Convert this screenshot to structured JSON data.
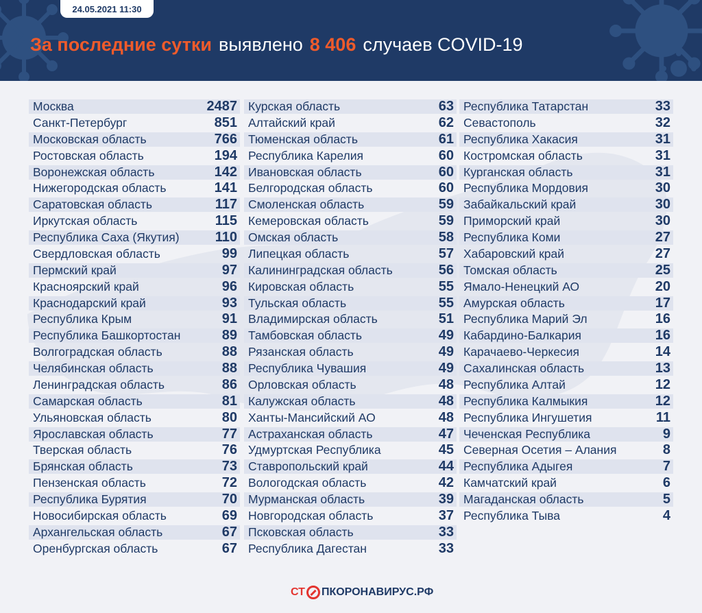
{
  "header": {
    "date": "24.05.2021 11:30",
    "headline_accent": "За последние сутки",
    "headline_mid": "выявлено",
    "headline_count": "8 406",
    "headline_tail": "случаев COVID-19"
  },
  "columns": [
    [
      {
        "region": "Москва",
        "count": "2487"
      },
      {
        "region": "Санкт-Петербург",
        "count": "851"
      },
      {
        "region": "Московская область",
        "count": "766"
      },
      {
        "region": "Ростовская область",
        "count": "194"
      },
      {
        "region": "Воронежская область",
        "count": "142"
      },
      {
        "region": "Нижегородская область",
        "count": "141"
      },
      {
        "region": "Саратовская область",
        "count": "117"
      },
      {
        "region": "Иркутская область",
        "count": "115"
      },
      {
        "region": "Республика Саха (Якутия)",
        "count": "110"
      },
      {
        "region": "Свердловская область",
        "count": "99"
      },
      {
        "region": "Пермский край",
        "count": "97"
      },
      {
        "region": "Красноярский край",
        "count": "96"
      },
      {
        "region": "Краснодарский край",
        "count": "93"
      },
      {
        "region": "Республика Крым",
        "count": "91"
      },
      {
        "region": "Республика Башкортостан",
        "count": "89"
      },
      {
        "region": "Волгоградская область",
        "count": "88"
      },
      {
        "region": "Челябинская область",
        "count": "88"
      },
      {
        "region": "Ленинградская область",
        "count": "86"
      },
      {
        "region": "Самарская область",
        "count": "81"
      },
      {
        "region": "Ульяновская область",
        "count": "80"
      },
      {
        "region": "Ярославская область",
        "count": "77"
      },
      {
        "region": "Тверская область",
        "count": "76"
      },
      {
        "region": "Брянская область",
        "count": "73"
      },
      {
        "region": "Пензенская область",
        "count": "72"
      },
      {
        "region": "Республика Бурятия",
        "count": "70"
      },
      {
        "region": "Новосибирская область",
        "count": "69"
      },
      {
        "region": "Архангельская область",
        "count": "67"
      },
      {
        "region": "Оренбургская область",
        "count": "67"
      }
    ],
    [
      {
        "region": "Курская область",
        "count": "63"
      },
      {
        "region": "Алтайский край",
        "count": "62"
      },
      {
        "region": "Тюменская область",
        "count": "61"
      },
      {
        "region": "Республика Карелия",
        "count": "60"
      },
      {
        "region": "Ивановская область",
        "count": "60"
      },
      {
        "region": "Белгородская область",
        "count": "60"
      },
      {
        "region": "Смоленская область",
        "count": "59"
      },
      {
        "region": "Кемеровская область",
        "count": "59"
      },
      {
        "region": "Омская область",
        "count": "58"
      },
      {
        "region": "Липецкая область",
        "count": "57"
      },
      {
        "region": "Калининградская область",
        "count": "56"
      },
      {
        "region": "Кировская область",
        "count": "55"
      },
      {
        "region": "Тульская область",
        "count": "55"
      },
      {
        "region": "Владимирская область",
        "count": "51"
      },
      {
        "region": "Тамбовская область",
        "count": "49"
      },
      {
        "region": "Рязанская область",
        "count": "49"
      },
      {
        "region": "Республика Чувашия",
        "count": "49"
      },
      {
        "region": "Орловская область",
        "count": "48"
      },
      {
        "region": "Калужская область",
        "count": "48"
      },
      {
        "region": "Ханты-Мансийский АО",
        "count": "48"
      },
      {
        "region": "Астраханская область",
        "count": "47"
      },
      {
        "region": "Удмуртская Республика",
        "count": "45"
      },
      {
        "region": "Ставропольский край",
        "count": "44"
      },
      {
        "region": "Вологодская область",
        "count": "42"
      },
      {
        "region": "Мурманская область",
        "count": "39"
      },
      {
        "region": "Новгородская область",
        "count": "37"
      },
      {
        "region": "Псковская область",
        "count": "33"
      },
      {
        "region": "Республика Дагестан",
        "count": "33"
      }
    ],
    [
      {
        "region": "Республика Татарстан",
        "count": "33"
      },
      {
        "region": "Севастополь",
        "count": "32"
      },
      {
        "region": "Республика Хакасия",
        "count": "31"
      },
      {
        "region": "Костромская область",
        "count": "31"
      },
      {
        "region": "Курганская область",
        "count": "31"
      },
      {
        "region": "Республика Мордовия",
        "count": "30"
      },
      {
        "region": "Забайкальский край",
        "count": "30"
      },
      {
        "region": "Приморский край",
        "count": "30"
      },
      {
        "region": "Республика Коми",
        "count": "27"
      },
      {
        "region": "Хабаровский край",
        "count": "27"
      },
      {
        "region": "Томская область",
        "count": "25"
      },
      {
        "region": "Ямало-Ненецкий АО",
        "count": "20"
      },
      {
        "region": "Амурская область",
        "count": "17"
      },
      {
        "region": "Республика Марий Эл",
        "count": "16"
      },
      {
        "region": "Кабардино-Балкария",
        "count": "16"
      },
      {
        "region": "Карачаево-Черкесия",
        "count": "14"
      },
      {
        "region": "Сахалинская область",
        "count": "13"
      },
      {
        "region": "Республика Алтай",
        "count": "12"
      },
      {
        "region": "Республика Калмыкия",
        "count": "12"
      },
      {
        "region": "Республика Ингушетия",
        "count": "11"
      },
      {
        "region": "Чеченская Республика",
        "count": "9"
      },
      {
        "region": "Северная Осетия – Алания",
        "count": "8"
      },
      {
        "region": "Республика Адыгея",
        "count": "7"
      },
      {
        "region": "Камчатский край",
        "count": "6"
      },
      {
        "region": "Магаданская область",
        "count": "5"
      },
      {
        "region": "Республика Тыва",
        "count": "4"
      }
    ]
  ],
  "footer": {
    "logo_prefix": "СТ",
    "logo_suffix": "ПКОРОНАВИРУС.РФ"
  },
  "icons": {
    "logo_stop_icon": "stop-sign-icon",
    "header_decoration": "virus-icon"
  },
  "colors": {
    "header_bg": "#1f3a66",
    "accent": "#ef5b2b",
    "text": "#1f3a66",
    "row_shade": "#dfe3ee",
    "page_bg": "#f1f2f6"
  }
}
